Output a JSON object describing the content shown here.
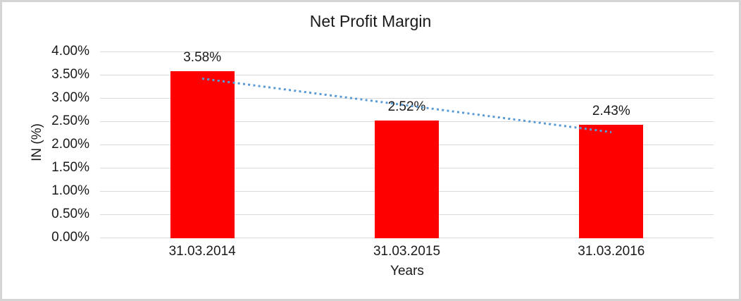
{
  "window": {
    "background": "#ffffff",
    "border_color": "#d5d5d5"
  },
  "chart_data": {
    "type": "bar",
    "title": "Net Profit Margin",
    "categories": [
      "31.03.2014",
      "31.03.2015",
      "31.03.2016"
    ],
    "values": [
      3.58,
      2.52,
      2.43
    ],
    "data_labels": [
      "3.58%",
      "2.52%",
      "2.43%"
    ],
    "xlabel": "Years",
    "ylabel": "IN (%)",
    "ylim": [
      0,
      4
    ],
    "ytick_step": 0.5,
    "ytick_labels": [
      "0.00%",
      "0.50%",
      "1.00%",
      "1.50%",
      "2.00%",
      "2.50%",
      "3.00%",
      "3.50%",
      "4.00%"
    ],
    "bar_color": "#ff0000",
    "gridline_color": "#d9d9d9",
    "text_color": "#1a1a1a",
    "grid": "horizontal",
    "legend": "none",
    "trendline": {
      "type": "linear",
      "style": "dotted",
      "color": "#5b9bd5",
      "start_value": 3.42,
      "end_value": 2.27
    }
  }
}
